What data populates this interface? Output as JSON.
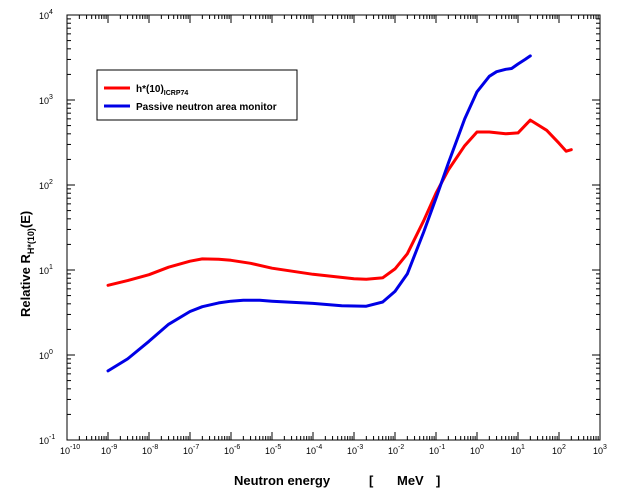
{
  "chart_data": {
    "type": "line",
    "title": "",
    "xlabel": "Neutron energy",
    "xunit_open": "[",
    "xunit": "MeV",
    "xunit_close": "]",
    "ylabel_main": "Relative  R",
    "ylabel_sub": "H*(10)",
    "ylabel_tail": "(E)",
    "xscale": "log",
    "yscale": "log",
    "xlim_exp": [
      -10,
      3
    ],
    "ylim_exp": [
      -1,
      4
    ],
    "xticks_exp": [
      -10,
      -9,
      -8,
      -7,
      -6,
      -5,
      -4,
      -3,
      -2,
      -1,
      0,
      1,
      2,
      3
    ],
    "yticks_exp": [
      -1,
      0,
      1,
      2,
      3,
      4
    ],
    "tick_base": "10",
    "grid": false,
    "legend_position": "top-left",
    "series": [
      {
        "name_main": "h*(10)",
        "name_sub": "ICRP74",
        "color": "#ff0000",
        "x": [
          1e-09,
          3e-09,
          1e-08,
          3e-08,
          1e-07,
          2e-07,
          5e-07,
          1e-06,
          3e-06,
          1e-05,
          0.0001,
          0.001,
          0.002,
          0.005,
          0.01,
          0.02,
          0.05,
          0.1,
          0.2,
          0.5,
          1,
          2,
          5,
          10,
          20,
          50,
          100,
          150,
          200
        ],
        "y": [
          6.6,
          7.5,
          8.8,
          10.8,
          12.7,
          13.5,
          13.4,
          13.0,
          12.0,
          10.5,
          8.9,
          7.9,
          7.8,
          8.1,
          10.3,
          15.5,
          38,
          80,
          150,
          290,
          420,
          420,
          400,
          410,
          580,
          440,
          310,
          250,
          260
        ]
      },
      {
        "name": "Passive neutron area monitor",
        "color": "#0000e6",
        "x": [
          1e-09,
          3e-09,
          1e-08,
          3e-08,
          1e-07,
          2e-07,
          5e-07,
          1e-06,
          2e-06,
          5e-06,
          1e-05,
          0.0001,
          0.0005,
          0.002,
          0.005,
          0.01,
          0.02,
          0.05,
          0.1,
          0.2,
          0.5,
          1,
          2,
          3,
          5,
          7,
          10,
          15,
          20
        ],
        "y": [
          0.65,
          0.9,
          1.45,
          2.3,
          3.25,
          3.7,
          4.1,
          4.3,
          4.4,
          4.4,
          4.3,
          4.05,
          3.8,
          3.75,
          4.2,
          5.6,
          9.0,
          28,
          70,
          180,
          600,
          1250,
          1900,
          2150,
          2300,
          2350,
          2650,
          3000,
          3300
        ]
      }
    ]
  }
}
